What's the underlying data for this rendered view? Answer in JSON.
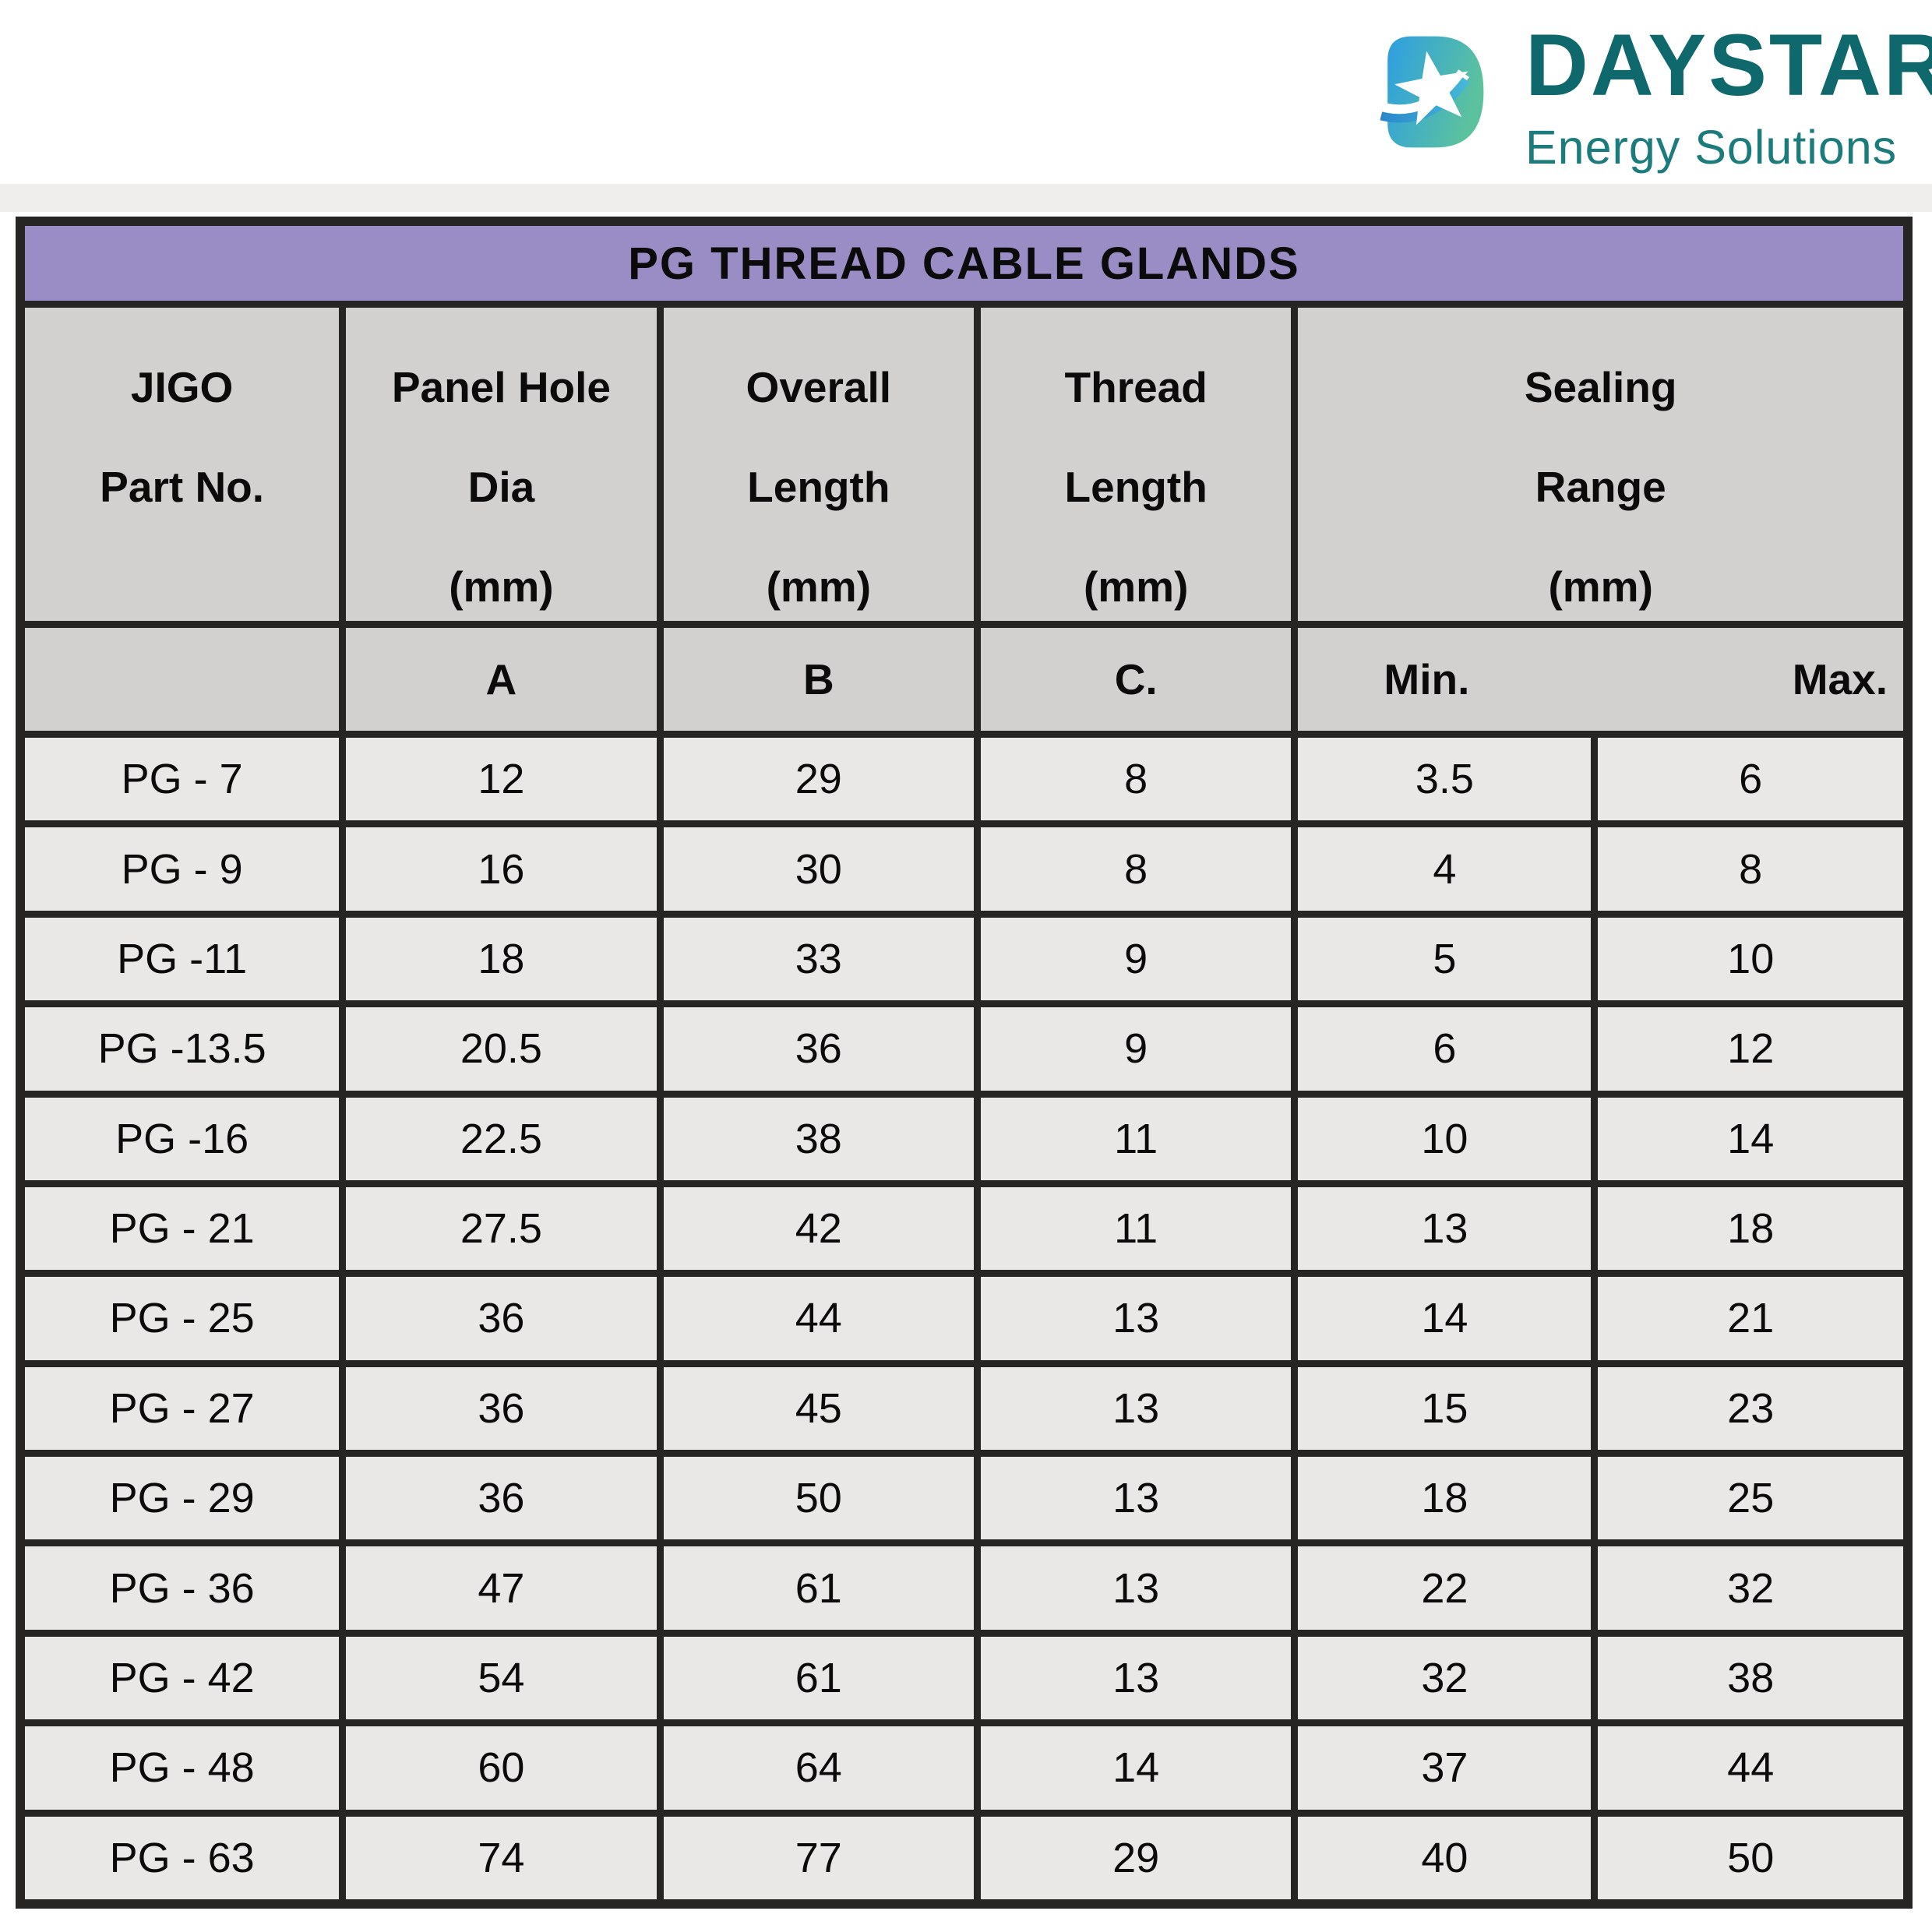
{
  "logo": {
    "brand": "DAYSTAR",
    "tagline": "Energy Solutions",
    "mark_icon": "daystar-star-icon",
    "colors": {
      "brand_text": "#0f686c",
      "tagline_text": "#1c7b7c",
      "mark_blue": "#2d9ee2",
      "mark_teal": "#5cc29e",
      "swoosh_blue": "#2a86cc",
      "swoosh_teal": "#45b8d8"
    }
  },
  "table": {
    "title": "PG THREAD CABLE GLANDS",
    "colors": {
      "title_bg": "#9a8dc5",
      "header_bg": "#d3d1cf",
      "row_bg": "#eae8e6",
      "border": "#262524"
    },
    "columns": [
      {
        "lines": [
          "JIGO",
          "Part No."
        ],
        "sub": ""
      },
      {
        "lines": [
          "Panel Hole",
          "Dia",
          "(mm)"
        ],
        "sub": "A"
      },
      {
        "lines": [
          "Overall",
          "Length",
          "(mm)"
        ],
        "sub": "B"
      },
      {
        "lines": [
          "Thread",
          "Length",
          "(mm)"
        ],
        "sub": "C."
      },
      {
        "lines": [
          "Sealing",
          "Range",
          "(mm)"
        ],
        "sub_min": "Min.",
        "sub_max": "Max."
      }
    ],
    "rows": [
      {
        "part": "PG - 7",
        "panel_hole_dia": "12",
        "overall_length": "29",
        "thread_length": "8",
        "seal_min": "3.5",
        "seal_max": "6"
      },
      {
        "part": "PG - 9",
        "panel_hole_dia": "16",
        "overall_length": "30",
        "thread_length": "8",
        "seal_min": "4",
        "seal_max": "8"
      },
      {
        "part": "PG -11",
        "panel_hole_dia": "18",
        "overall_length": "33",
        "thread_length": "9",
        "seal_min": "5",
        "seal_max": "10"
      },
      {
        "part": "PG -13.5",
        "panel_hole_dia": "20.5",
        "overall_length": "36",
        "thread_length": "9",
        "seal_min": "6",
        "seal_max": "12"
      },
      {
        "part": "PG -16",
        "panel_hole_dia": "22.5",
        "overall_length": "38",
        "thread_length": "11",
        "seal_min": "10",
        "seal_max": "14"
      },
      {
        "part": "PG - 21",
        "panel_hole_dia": "27.5",
        "overall_length": "42",
        "thread_length": "11",
        "seal_min": "13",
        "seal_max": "18"
      },
      {
        "part": "PG - 25",
        "panel_hole_dia": "36",
        "overall_length": "44",
        "thread_length": "13",
        "seal_min": "14",
        "seal_max": "21"
      },
      {
        "part": "PG - 27",
        "panel_hole_dia": "36",
        "overall_length": "45",
        "thread_length": "13",
        "seal_min": "15",
        "seal_max": "23"
      },
      {
        "part": "PG - 29",
        "panel_hole_dia": "36",
        "overall_length": "50",
        "thread_length": "13",
        "seal_min": "18",
        "seal_max": "25"
      },
      {
        "part": "PG - 36",
        "panel_hole_dia": "47",
        "overall_length": "61",
        "thread_length": "13",
        "seal_min": "22",
        "seal_max": "32"
      },
      {
        "part": "PG - 42",
        "panel_hole_dia": "54",
        "overall_length": "61",
        "thread_length": "13",
        "seal_min": "32",
        "seal_max": "38"
      },
      {
        "part": "PG - 48",
        "panel_hole_dia": "60",
        "overall_length": "64",
        "thread_length": "14",
        "seal_min": "37",
        "seal_max": "44"
      },
      {
        "part": "PG - 63",
        "panel_hole_dia": "74",
        "overall_length": "77",
        "thread_length": "29",
        "seal_min": "40",
        "seal_max": "50"
      }
    ]
  }
}
